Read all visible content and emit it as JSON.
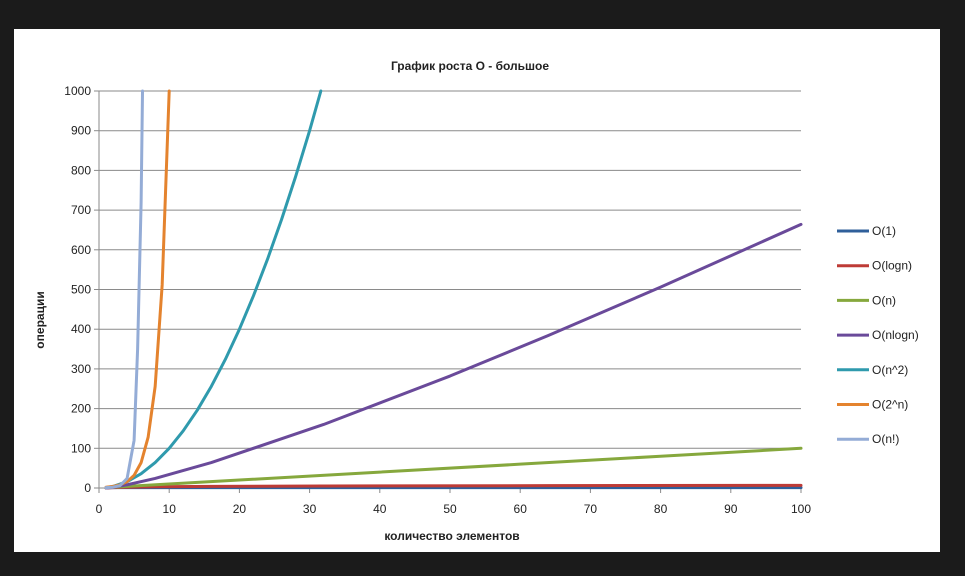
{
  "chart_data": {
    "type": "line",
    "title": "График роста O - большое",
    "xlabel": "количество элементов",
    "ylabel": "операции",
    "xlim": [
      0,
      100
    ],
    "ylim": [
      0,
      1000
    ],
    "x_ticks": [
      "0",
      "10",
      "20",
      "30",
      "40",
      "50",
      "60",
      "70",
      "80",
      "90",
      "100"
    ],
    "y_ticks": [
      "0",
      "100",
      "200",
      "300",
      "400",
      "500",
      "600",
      "700",
      "800",
      "900",
      "1000"
    ],
    "grid": "horizontal",
    "legend_position": "right",
    "series": [
      {
        "name": "O(1)",
        "color": "#2f5f9a",
        "points": [
          [
            1,
            1
          ],
          [
            100,
            1
          ]
        ]
      },
      {
        "name": "O(logn)",
        "color": "#be3b36",
        "points": [
          [
            1,
            0
          ],
          [
            2,
            1
          ],
          [
            4,
            2
          ],
          [
            8,
            3
          ],
          [
            16,
            4
          ],
          [
            32,
            5
          ],
          [
            64,
            6
          ],
          [
            100,
            6.6
          ]
        ]
      },
      {
        "name": "O(n)",
        "color": "#86a83d",
        "points": [
          [
            1,
            1
          ],
          [
            20,
            20
          ],
          [
            40,
            40
          ],
          [
            60,
            60
          ],
          [
            80,
            80
          ],
          [
            100,
            100
          ]
        ]
      },
      {
        "name": "O(nlogn)",
        "color": "#6a4a9a",
        "points": [
          [
            1,
            0
          ],
          [
            2,
            2
          ],
          [
            4,
            8
          ],
          [
            8,
            24
          ],
          [
            16,
            64
          ],
          [
            32,
            160
          ],
          [
            50,
            282
          ],
          [
            64,
            384
          ],
          [
            80,
            506
          ],
          [
            100,
            664
          ]
        ]
      },
      {
        "name": "O(n^2)",
        "color": "#2f9aad",
        "points": [
          [
            1,
            1
          ],
          [
            2,
            4
          ],
          [
            4,
            16
          ],
          [
            6,
            36
          ],
          [
            8,
            64
          ],
          [
            10,
            100
          ],
          [
            12,
            144
          ],
          [
            14,
            196
          ],
          [
            16,
            256
          ],
          [
            18,
            324
          ],
          [
            20,
            400
          ],
          [
            22,
            484
          ],
          [
            24,
            576
          ],
          [
            26,
            676
          ],
          [
            28,
            784
          ],
          [
            30,
            900
          ],
          [
            31.6,
            1000
          ]
        ]
      },
      {
        "name": "O(2^n)",
        "color": "#e4832e",
        "points": [
          [
            1,
            2
          ],
          [
            2,
            4
          ],
          [
            3,
            8
          ],
          [
            4,
            16
          ],
          [
            5,
            32
          ],
          [
            6,
            64
          ],
          [
            7,
            128
          ],
          [
            8,
            256
          ],
          [
            9,
            512
          ],
          [
            10,
            1000
          ]
        ]
      },
      {
        "name": "O(n!)",
        "color": "#94acd6",
        "points": [
          [
            1,
            1
          ],
          [
            2,
            2
          ],
          [
            3,
            6
          ],
          [
            4,
            24
          ],
          [
            5,
            120
          ],
          [
            5.5,
            350
          ],
          [
            6,
            720
          ],
          [
            6.2,
            1000
          ]
        ]
      }
    ]
  }
}
